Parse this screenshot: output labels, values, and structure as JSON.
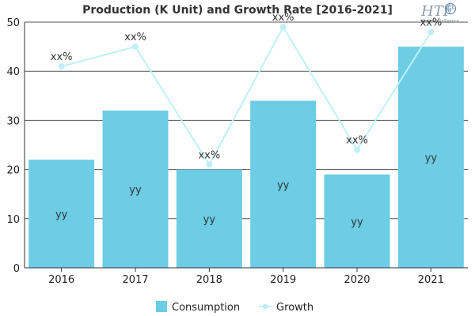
{
  "chart_data": {
    "type": "bar",
    "title": "Production (K Unit) and Growth Rate [2016-2021]",
    "categories": [
      "2016",
      "2017",
      "2018",
      "2019",
      "2020",
      "2021"
    ],
    "series": [
      {
        "name": "Consumption",
        "type": "bar",
        "values": [
          22,
          32,
          20,
          34,
          19,
          45
        ],
        "data_labels": [
          "yy",
          "yy",
          "yy",
          "yy",
          "yy",
          "yy"
        ],
        "color": "#6ccde4"
      },
      {
        "name": "Growth",
        "type": "line",
        "values": [
          41,
          45,
          21,
          49,
          24,
          48
        ],
        "data_labels": [
          "xx%",
          "xx%",
          "xx%",
          "xx%",
          "xx%",
          "xx%"
        ],
        "color": "#bff0f5"
      }
    ],
    "y_ticks": [
      "0",
      "10",
      "20",
      "30",
      "40",
      "50"
    ],
    "ylim": [
      0,
      50
    ],
    "grid": true,
    "legend_position": "bottom"
  },
  "logo": {
    "text": "HTF",
    "subtext": "Market Intelligence"
  },
  "colors": {
    "grid": "#555555",
    "axis": "#333333"
  }
}
